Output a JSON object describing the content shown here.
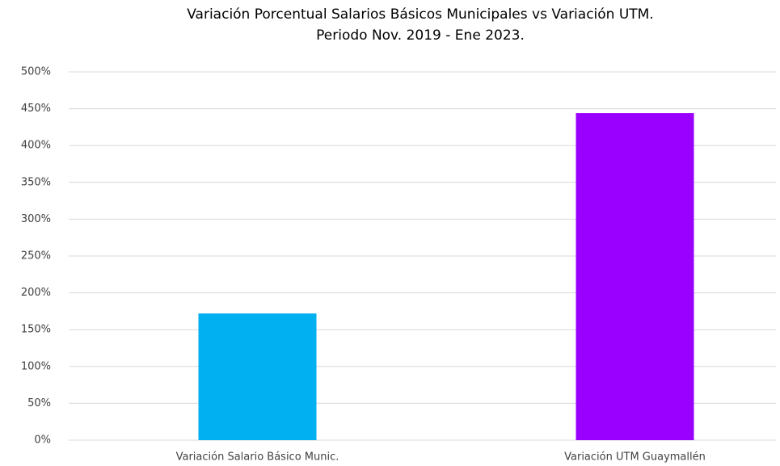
{
  "chart_data": {
    "type": "bar",
    "title": "Variación Porcentual Salarios Básicos Municipales vs Variación UTM.",
    "subtitle": "Periodo Nov. 2019 - Ene 2023.",
    "categories": [
      "Variación Salario Básico Munic.",
      "Variación UTM Guaymallén"
    ],
    "values": [
      172,
      444
    ],
    "colors": [
      "#00b0f0",
      "#9900ff"
    ],
    "ylim": [
      0,
      500
    ],
    "yticks": [
      {
        "value": 0,
        "label": "0%"
      },
      {
        "value": 50,
        "label": "50%"
      },
      {
        "value": 100,
        "label": "100%"
      },
      {
        "value": 150,
        "label": "150%"
      },
      {
        "value": 200,
        "label": "200%"
      },
      {
        "value": 250,
        "label": "250%"
      },
      {
        "value": 300,
        "label": "300%"
      },
      {
        "value": 350,
        "label": "350%"
      },
      {
        "value": 400,
        "label": "400%"
      },
      {
        "value": 450,
        "label": "450%"
      },
      {
        "value": 500,
        "label": "500%"
      }
    ],
    "grid": true
  }
}
